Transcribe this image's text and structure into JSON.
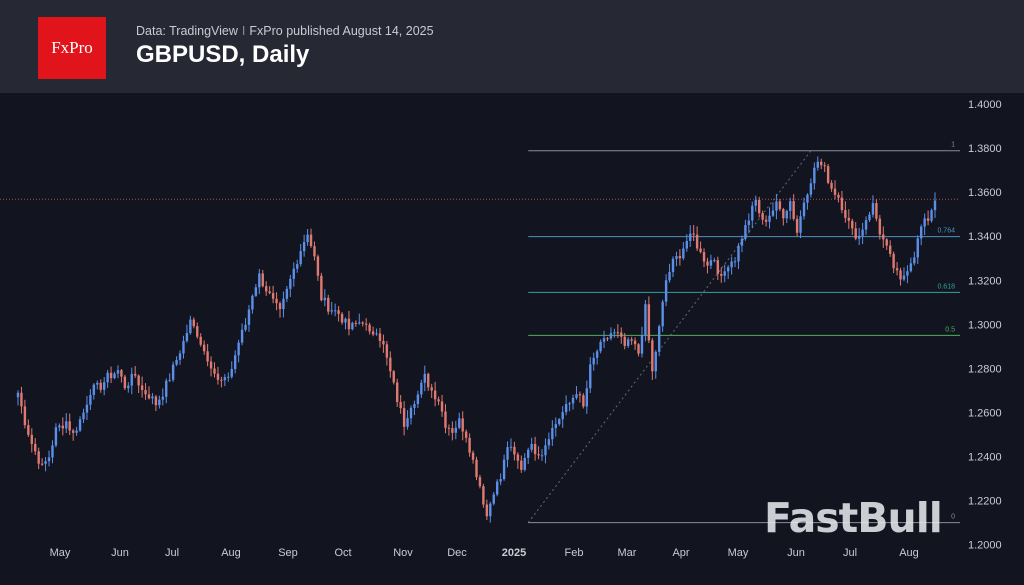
{
  "header": {
    "logo_text": "FxPro",
    "source": "Data: TradingView",
    "separator": "I",
    "published": "FxPro published August 14, 2025",
    "title": "GBPUSD, Daily"
  },
  "watermark": "FastBull",
  "colors": {
    "bull": "#5b8fe8",
    "bear": "#e07a70",
    "background": "#121520",
    "header": "#262833",
    "brand_red": "#e1141b"
  },
  "chart_data": {
    "type": "candlestick",
    "title": "GBPUSD, Daily",
    "y_ticks": [
      "1.2000",
      "1.2200",
      "1.2400",
      "1.2600",
      "1.2800",
      "1.3000",
      "1.3200",
      "1.3400",
      "1.3600",
      "1.3800",
      "1.4000"
    ],
    "ylim": [
      1.1985,
      1.405
    ],
    "x_ticks": [
      "May",
      "Jun",
      "Jul",
      "Aug",
      "Sep",
      "Oct",
      "Nov",
      "Dec",
      "2025",
      "Feb",
      "Mar",
      "Apr",
      "May",
      "Jun",
      "Jul",
      "Aug"
    ],
    "grid": false,
    "price_line": 1.3568,
    "fib_levels": [
      {
        "label": "1",
        "value": 1.3788
      },
      {
        "label": "0.764",
        "value": 1.3398
      },
      {
        "label": "0.618",
        "value": 1.3145
      },
      {
        "label": "0.5",
        "value": 1.295
      },
      {
        "label": "0",
        "value": 1.21
      }
    ],
    "close_path": [
      [
        0,
        1.269
      ],
      [
        2,
        1.256
      ],
      [
        4,
        1.246
      ],
      [
        7,
        1.235
      ],
      [
        9,
        1.24
      ],
      [
        11,
        1.252
      ],
      [
        14,
        1.256
      ],
      [
        16,
        1.25
      ],
      [
        19,
        1.26
      ],
      [
        21,
        1.27
      ],
      [
        24,
        1.272
      ],
      [
        26,
        1.276
      ],
      [
        29,
        1.279
      ],
      [
        31,
        1.272
      ],
      [
        34,
        1.277
      ],
      [
        36,
        1.27
      ],
      [
        38,
        1.268
      ],
      [
        40,
        1.264
      ],
      [
        42,
        1.269
      ],
      [
        44,
        1.276
      ],
      [
        46,
        1.284
      ],
      [
        48,
        1.292
      ],
      [
        50,
        1.301
      ],
      [
        52,
        1.296
      ],
      [
        54,
        1.288
      ],
      [
        56,
        1.282
      ],
      [
        58,
        1.274
      ],
      [
        60,
        1.274
      ],
      [
        62,
        1.28
      ],
      [
        64,
        1.292
      ],
      [
        66,
        1.3
      ],
      [
        68,
        1.314
      ],
      [
        70,
        1.322
      ],
      [
        72,
        1.316
      ],
      [
        74,
        1.31
      ],
      [
        76,
        1.305
      ],
      [
        78,
        1.315
      ],
      [
        80,
        1.325
      ],
      [
        82,
        1.334
      ],
      [
        84,
        1.342
      ],
      [
        86,
        1.33
      ],
      [
        88,
        1.312
      ],
      [
        90,
        1.308
      ],
      [
        93,
        1.305
      ],
      [
        96,
        1.298
      ],
      [
        98,
        1.3
      ],
      [
        100,
        1.302
      ],
      [
        102,
        1.295
      ],
      [
        104,
        1.298
      ],
      [
        106,
        1.29
      ],
      [
        108,
        1.278
      ],
      [
        110,
        1.266
      ],
      [
        112,
        1.255
      ],
      [
        114,
        1.264
      ],
      [
        116,
        1.268
      ],
      [
        118,
        1.276
      ],
      [
        120,
        1.27
      ],
      [
        122,
        1.266
      ],
      [
        124,
        1.255
      ],
      [
        126,
        1.252
      ],
      [
        128,
        1.256
      ],
      [
        130,
        1.25
      ],
      [
        132,
        1.238
      ],
      [
        134,
        1.227
      ],
      [
        136,
        1.213
      ],
      [
        138,
        1.225
      ],
      [
        140,
        1.23
      ],
      [
        142,
        1.245
      ],
      [
        144,
        1.24
      ],
      [
        146,
        1.235
      ],
      [
        148,
        1.245
      ],
      [
        150,
        1.243
      ],
      [
        152,
        1.242
      ],
      [
        154,
        1.25
      ],
      [
        156,
        1.255
      ],
      [
        158,
        1.26
      ],
      [
        160,
        1.264
      ],
      [
        162,
        1.27
      ],
      [
        164,
        1.262
      ],
      [
        166,
        1.28
      ],
      [
        168,
        1.288
      ],
      [
        170,
        1.292
      ],
      [
        172,
        1.296
      ],
      [
        174,
        1.295
      ],
      [
        176,
        1.29
      ],
      [
        178,
        1.292
      ],
      [
        180,
        1.287
      ],
      [
        182,
        1.307
      ],
      [
        184,
        1.278
      ],
      [
        186,
        1.298
      ],
      [
        188,
        1.32
      ],
      [
        190,
        1.328
      ],
      [
        192,
        1.332
      ],
      [
        194,
        1.338
      ],
      [
        196,
        1.34
      ],
      [
        198,
        1.332
      ],
      [
        200,
        1.328
      ],
      [
        202,
        1.33
      ],
      [
        204,
        1.32
      ],
      [
        206,
        1.328
      ],
      [
        208,
        1.33
      ],
      [
        210,
        1.34
      ],
      [
        212,
        1.348
      ],
      [
        214,
        1.356
      ],
      [
        216,
        1.346
      ],
      [
        218,
        1.35
      ],
      [
        220,
        1.354
      ],
      [
        222,
        1.35
      ],
      [
        224,
        1.356
      ],
      [
        226,
        1.342
      ],
      [
        228,
        1.356
      ],
      [
        230,
        1.366
      ],
      [
        232,
        1.374
      ],
      [
        234,
        1.37
      ],
      [
        236,
        1.362
      ],
      [
        238,
        1.358
      ],
      [
        240,
        1.35
      ],
      [
        242,
        1.342
      ],
      [
        244,
        1.34
      ],
      [
        246,
        1.348
      ],
      [
        248,
        1.354
      ],
      [
        250,
        1.342
      ],
      [
        252,
        1.334
      ],
      [
        254,
        1.326
      ],
      [
        256,
        1.319
      ],
      [
        258,
        1.326
      ],
      [
        260,
        1.332
      ],
      [
        262,
        1.344
      ],
      [
        264,
        1.348
      ],
      [
        266,
        1.357
      ]
    ]
  }
}
